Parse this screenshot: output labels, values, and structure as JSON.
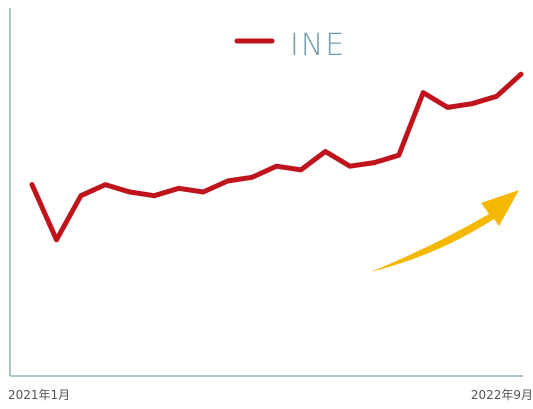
{
  "chart_data": {
    "type": "line",
    "title": "",
    "xlabel": "",
    "ylabel": "",
    "grid": false,
    "legend_placement": "top-center",
    "x_tick_labels": [
      "2021年1月",
      "2022年9月"
    ],
    "x": [
      "2021-01",
      "2021-02",
      "2021-03",
      "2021-04",
      "2021-05",
      "2021-06",
      "2021-07",
      "2021-08",
      "2021-09",
      "2021-10",
      "2021-11",
      "2021-12",
      "2022-01",
      "2022-02",
      "2022-03",
      "2022-04",
      "2022-05",
      "2022-06",
      "2022-07",
      "2022-08",
      "2022-09"
    ],
    "ylim": [
      0,
      100
    ],
    "series": [
      {
        "name": "INE",
        "color": "#c0141c",
        "values": [
          52,
          37,
          49,
          52,
          50,
          49,
          51,
          50,
          53,
          54,
          57,
          56,
          61,
          57,
          58,
          60,
          77,
          73,
          74,
          76,
          82
        ]
      }
    ],
    "annotations": [
      {
        "type": "arrow",
        "direction": "up-right",
        "color": "#f5b800"
      }
    ],
    "axis_color": "#8fb3bf",
    "tick_color": "#555555"
  }
}
